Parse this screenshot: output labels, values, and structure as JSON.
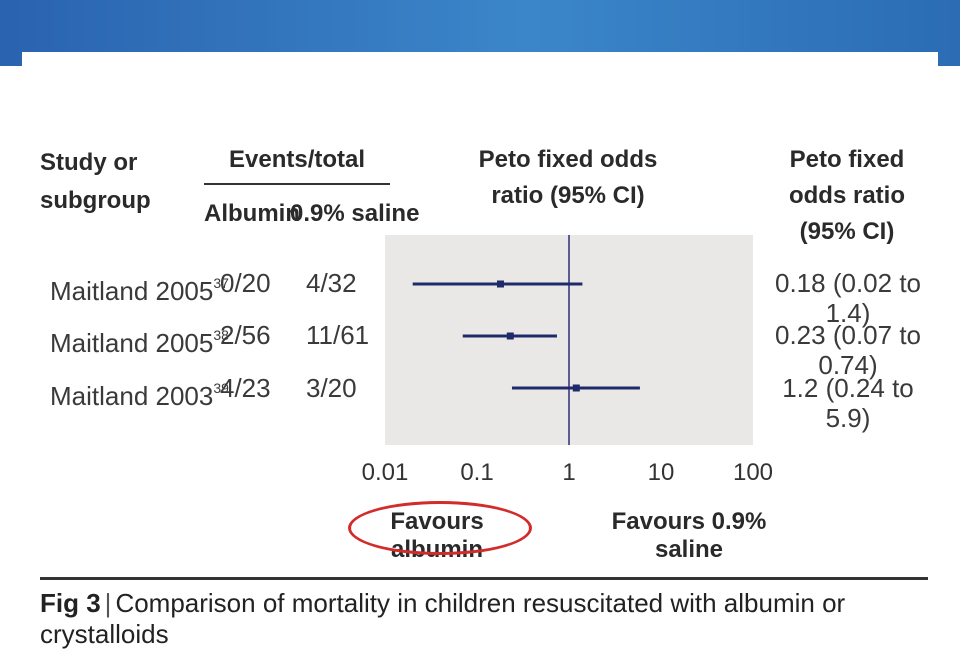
{
  "header": {
    "study_col": "Study or subgroup",
    "events_col": "Events/total",
    "albumin_col": "Albumin",
    "saline_col": "0.9% saline",
    "or_plot_col": "Peto fixed odds ratio (95% CI)",
    "or_text_col": "Peto fixed odds ratio (95% CI)"
  },
  "studies": [
    {
      "name": "Maitland 2005",
      "ref": "37",
      "albumin": "0/20",
      "saline": "4/32",
      "or_text": "0.18 (0.02 to 1.4)"
    },
    {
      "name": "Maitland 2005",
      "ref": "38",
      "albumin": "2/56",
      "saline": "11/61",
      "or_text": "0.23 (0.07 to 0.74)"
    },
    {
      "name": "Maitland 2003",
      "ref": "39",
      "albumin": "4/23",
      "saline": "3/20",
      "or_text": "1.2 (0.24 to 5.9)"
    }
  ],
  "favours": {
    "left": "Favours albumin",
    "right": "Favours 0.9% saline"
  },
  "caption": {
    "label": "Fig 3",
    "text": "Comparison of mortality in children resuscitated with albumin or crystalloids"
  },
  "colors": {
    "banner": "#2f74bf",
    "panel": "#e9e8e6",
    "ci_line": "#1f2a6b",
    "highlight": "#d32a2a"
  },
  "chart_data": {
    "type": "forest",
    "x_scale": "log",
    "xlim": [
      0.01,
      100
    ],
    "ticks": [
      0.01,
      0.1,
      1,
      10,
      100
    ],
    "tick_labels": [
      "0.01",
      "0.1",
      "1",
      "10",
      "100"
    ],
    "reference_line": 1,
    "series": [
      {
        "label": "Maitland 2005 (37)",
        "estimate": 0.18,
        "ci_low": 0.02,
        "ci_high": 1.4
      },
      {
        "label": "Maitland 2005 (38)",
        "estimate": 0.23,
        "ci_low": 0.07,
        "ci_high": 0.74
      },
      {
        "label": "Maitland 2003 (39)",
        "estimate": 1.2,
        "ci_low": 0.24,
        "ci_high": 5.9
      }
    ]
  }
}
